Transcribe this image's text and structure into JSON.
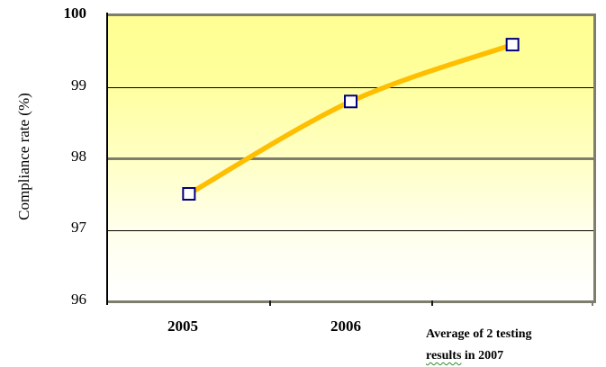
{
  "chart_data": {
    "type": "line",
    "title": "",
    "xlabel": "",
    "ylabel": "Compliance rate (%)",
    "categories": [
      "2005",
      "2006",
      "Average of 2 testing results in 2007"
    ],
    "values": [
      97.5,
      98.8,
      99.6
    ],
    "ylim": [
      96,
      100
    ],
    "yticks": [
      100,
      99,
      98,
      97,
      96
    ],
    "grid": true,
    "legend_position": "none",
    "smooth_line": true,
    "line_color": "#FFBE00",
    "marker": "open-square",
    "marker_border_color": "#000080",
    "marker_fill_color": "#FFFFFF",
    "plot_background": "gradient #FFFF99 to #FFFFFF"
  },
  "y_axis": {
    "title": "Compliance rate (%)",
    "ticks": [
      {
        "label": "100",
        "bold": true
      },
      {
        "label": "99",
        "bold": false
      },
      {
        "label": "98",
        "bold": false
      },
      {
        "label": "97",
        "bold": false
      },
      {
        "label": "96",
        "bold": false
      }
    ]
  },
  "x_axis": {
    "labels": [
      "2005",
      "2006"
    ],
    "label3_line1": "Average of 2 testing",
    "label3_line2_word": "results",
    "label3_line2_rest": " in 2007"
  },
  "colors": {
    "plot_top": "#FFFF99",
    "plot_bottom": "#FFFFFF",
    "line": "#FFBE00",
    "marker_border": "#000080",
    "border_gray": "#7E7E6E",
    "gridline": "#000000",
    "text": "#000000"
  }
}
